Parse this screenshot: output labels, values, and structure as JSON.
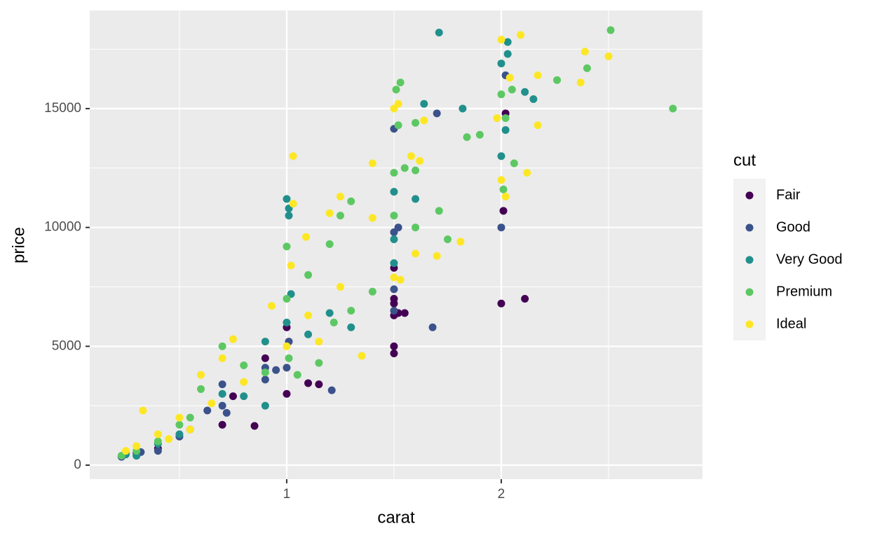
{
  "chart_data": {
    "type": "scatter",
    "x_label": "carat",
    "y_label": "price",
    "legend_title": "cut",
    "xlim": [
      0.082,
      2.938
    ],
    "ylim": [
      -589,
      19127
    ],
    "xticks": [
      1,
      2
    ],
    "yticks": [
      0,
      5000,
      10000,
      15000
    ],
    "x_minor_grid": [
      0.5,
      1.5,
      2.5
    ],
    "y_minor_grid": [
      2500,
      7500,
      12500,
      17500
    ],
    "grid": true,
    "legend": "right",
    "series": [
      {
        "name": "Fair",
        "color": "#440154",
        "x": [
          1.5,
          1.5,
          1.5,
          1.5,
          1.5,
          1.52,
          1.55,
          2.0,
          2.11,
          2.01,
          2.02,
          1.0,
          1.0,
          1.1,
          1.15,
          0.85,
          0.7,
          0.75,
          0.9,
          0.3,
          0.4,
          1.5
        ],
        "y": [
          4700,
          5000,
          6300,
          7000,
          8300,
          6400,
          6400,
          6800,
          7000,
          10700,
          14800,
          3000,
          5800,
          3450,
          3400,
          1650,
          1700,
          2900,
          4500,
          500,
          700,
          6800
        ]
      },
      {
        "name": "Good",
        "color": "#3B528B",
        "x": [
          1.5,
          1.7,
          1.5,
          1.52,
          1.68,
          2.0,
          2.02,
          1.21,
          1.0,
          0.9,
          0.9,
          0.7,
          0.7,
          0.63,
          0.5,
          0.4,
          0.3,
          0.25,
          1.5,
          0.23,
          0.32,
          0.55,
          0.72,
          0.95,
          1.01,
          1.5
        ],
        "y": [
          14150,
          14800,
          9800,
          10000,
          5800,
          10000,
          16400,
          3150,
          4100,
          4100,
          3600,
          3400,
          2500,
          2300,
          1200,
          600,
          400,
          500,
          6500,
          350,
          550,
          1500,
          2200,
          4000,
          5200,
          7400
        ]
      },
      {
        "name": "Very Good",
        "color": "#21908C",
        "x": [
          1.71,
          2.03,
          2.0,
          2.03,
          1.82,
          1.64,
          2.02,
          2.11,
          2.15,
          2.0,
          1.0,
          1.01,
          1.01,
          1.5,
          1.6,
          1.5,
          1.3,
          1.0,
          0.9,
          0.9,
          0.7,
          0.5,
          0.4,
          0.3,
          1.1,
          1.2,
          0.8,
          0.25,
          1.5,
          1.02
        ],
        "y": [
          18200,
          17300,
          16900,
          17800,
          15000,
          15200,
          14100,
          15700,
          15400,
          13000,
          11200,
          10800,
          10500,
          11500,
          11200,
          8500,
          5800,
          6000,
          5200,
          2500,
          3000,
          1300,
          900,
          400,
          5500,
          6400,
          2900,
          450,
          9500,
          7200
        ]
      },
      {
        "name": "Premium",
        "color": "#5DC863",
        "x": [
          2.51,
          2.8,
          2.4,
          2.26,
          1.51,
          1.53,
          1.52,
          1.6,
          2.0,
          2.05,
          2.02,
          1.84,
          1.9,
          1.5,
          1.55,
          1.6,
          2.01,
          2.06,
          1.71,
          1.75,
          1.5,
          1.6,
          1.3,
          1.25,
          1.2,
          1.0,
          1.22,
          1.4,
          1.1,
          1.0,
          0.7,
          0.6,
          0.5,
          0.4,
          0.3,
          0.23,
          1.01,
          0.8,
          0.9,
          1.3,
          0.55,
          1.15,
          1.05
        ],
        "y": [
          18300,
          15000,
          16700,
          16200,
          15800,
          16100,
          14300,
          14400,
          15600,
          15800,
          14600,
          13800,
          13900,
          12300,
          12500,
          12400,
          11600,
          12700,
          10700,
          9500,
          10500,
          10000,
          11100,
          10500,
          9300,
          9200,
          6000,
          7300,
          8000,
          7000,
          5000,
          3200,
          1700,
          1000,
          600,
          400,
          4500,
          4200,
          3900,
          6500,
          2000,
          4300,
          3800
        ]
      },
      {
        "name": "Ideal",
        "color": "#FDE725",
        "x": [
          2.0,
          2.09,
          2.39,
          2.5,
          2.37,
          2.17,
          2.04,
          1.5,
          1.52,
          1.98,
          2.17,
          1.64,
          1.03,
          1.58,
          1.62,
          1.4,
          2.12,
          2.0,
          2.02,
          1.03,
          1.25,
          1.2,
          1.4,
          1.6,
          1.7,
          1.81,
          1.09,
          1.02,
          1.5,
          1.53,
          1.35,
          1.15,
          1.0,
          0.93,
          0.75,
          0.7,
          0.6,
          0.5,
          0.4,
          0.3,
          0.25,
          0.33,
          0.8,
          1.25,
          1.1,
          0.55,
          0.45,
          0.65
        ],
        "y": [
          17900,
          18100,
          17400,
          17200,
          16100,
          16400,
          16300,
          15000,
          15200,
          14600,
          14300,
          14500,
          13000,
          13000,
          12800,
          12700,
          12300,
          12000,
          11300,
          11000,
          11300,
          10600,
          10400,
          8900,
          8800,
          9400,
          9600,
          8400,
          7900,
          7800,
          4600,
          5200,
          5000,
          6700,
          5300,
          4500,
          3800,
          2000,
          1300,
          800,
          600,
          2300,
          3500,
          7500,
          6300,
          1500,
          1100,
          2600
        ]
      }
    ]
  }
}
